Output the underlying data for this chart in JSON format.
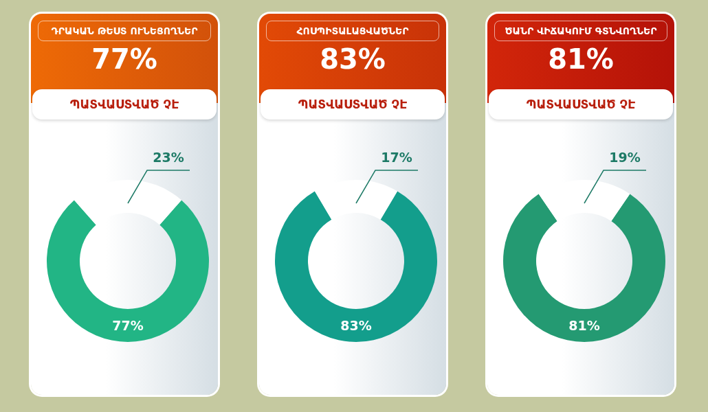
{
  "chart_data": [
    {
      "type": "donut",
      "title": "ԴՐԱԿԱՆ ԹԵՍՏ ՈՒՆԵՑՈՂՆԵՐ",
      "annotations": [
        "77%"
      ],
      "subtitle": "ՊԱՏՎԱՍՏՎԱԾ ՉԷ",
      "categories": [
        null,
        null
      ],
      "values": [
        77,
        23
      ],
      "colors": [
        "#22b585",
        "#ffffff"
      ],
      "value_labels": [
        "77%",
        "23%"
      ],
      "legend": false
    },
    {
      "type": "donut",
      "title": "ՀՈՍՊԻՏԱԼԱՑՎԱԾՆԵՐ",
      "annotations": [
        "83%"
      ],
      "subtitle": "ՊԱՏՎԱՍՏՎԱԾ ՉԷ",
      "categories": [
        null,
        null
      ],
      "values": [
        83,
        17
      ],
      "colors": [
        "#139e8c",
        "#ffffff"
      ],
      "value_labels": [
        "83%",
        "17%"
      ],
      "legend": false
    },
    {
      "type": "donut",
      "title": "ԾԱՆՐ ՎԻՃԱԿՈՒՄ ԳՏՆՎՈՂՆԵՐ",
      "annotations": [
        "81%"
      ],
      "subtitle": "ՊԱՏՎԱՍՏՎԱԾ ՉԷ",
      "categories": [
        null,
        null
      ],
      "values": [
        81,
        19
      ],
      "colors": [
        "#249a72",
        "#ffffff"
      ],
      "value_labels": [
        "81%",
        "19%"
      ],
      "legend": false
    }
  ]
}
